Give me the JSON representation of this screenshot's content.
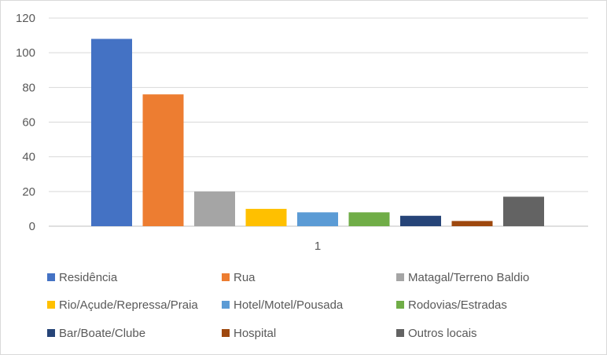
{
  "chart_data": {
    "type": "bar",
    "categories": [
      "1"
    ],
    "series": [
      {
        "name": "Residência",
        "values": [
          108
        ],
        "color": "#4472C4"
      },
      {
        "name": "Rua",
        "values": [
          76
        ],
        "color": "#ED7D31"
      },
      {
        "name": "Matagal/Terreno Baldio",
        "values": [
          20
        ],
        "color": "#A5A5A5"
      },
      {
        "name": "Rio/Açude/Repressa/Praia",
        "values": [
          10
        ],
        "color": "#FFC000"
      },
      {
        "name": "Hotel/Motel/Pousada",
        "values": [
          8
        ],
        "color": "#5B9BD5"
      },
      {
        "name": "Rodovias/Estradas",
        "values": [
          8
        ],
        "color": "#70AD47"
      },
      {
        "name": "Bar/Boate/Clube",
        "values": [
          6
        ],
        "color": "#264478"
      },
      {
        "name": "Hospital",
        "values": [
          3
        ],
        "color": "#9E480E"
      },
      {
        "name": "Outros locais",
        "values": [
          17
        ],
        "color": "#636363"
      }
    ],
    "ylim": [
      0,
      120
    ],
    "yticks": [
      0,
      20,
      40,
      60,
      80,
      100,
      120
    ],
    "grid": true,
    "legend": "bottom"
  }
}
